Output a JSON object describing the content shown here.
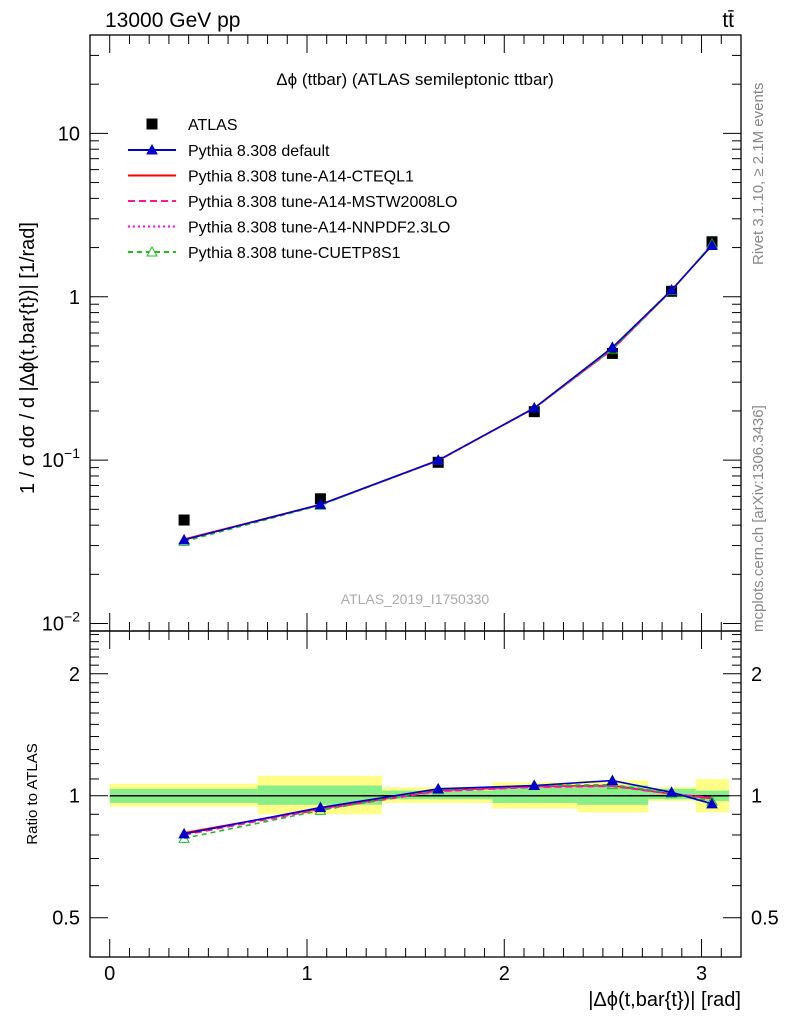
{
  "header": {
    "energy": "13000 GeV pp",
    "process": "tt̄"
  },
  "side_labels": {
    "rivet": "Rivet 3.1.10, ≥ 2.1M events",
    "source": "mcplots.cern.ch [arXiv:1306.3436]"
  },
  "chart_data": [
    {
      "type": "line",
      "panel": "main",
      "title": "Δϕ (ttbar) (ATLAS semileptonic ttbar)",
      "watermark": "ATLAS_2019_I1750330",
      "ylabel": "1 / σ dσ / d |Δϕ(t,bar{t})| [1/rad]",
      "yscale": "log",
      "xlim": [
        -0.1,
        3.2
      ],
      "ylim": [
        0.009,
        40
      ],
      "y_tick_labels": [
        {
          "value": 0.01,
          "base": "10",
          "exp": "−2"
        },
        {
          "value": 0.1,
          "base": "10",
          "exp": "−1"
        },
        {
          "value": 1,
          "base": "1",
          "exp": ""
        },
        {
          "value": 10,
          "base": "10",
          "exp": ""
        }
      ],
      "x": [
        0.377,
        1.068,
        1.665,
        2.152,
        2.548,
        2.848,
        3.053
      ],
      "data": {
        "name": "ATLAS",
        "values": [
          0.043,
          0.058,
          0.097,
          0.198,
          0.45,
          1.08,
          2.17
        ]
      },
      "legend_position": "top-left",
      "series": [
        {
          "name": "Pythia 8.308 default",
          "color": "#0000cc",
          "dash": "",
          "marker": "filled-triangle",
          "values": [
            0.0325,
            0.0535,
            0.0998,
            0.2085,
            0.49,
            1.1,
            2.06
          ]
        },
        {
          "name": "Pythia 8.308 tune-A14-CTEQL1",
          "color": "#ff0000",
          "dash": "",
          "marker": "none",
          "values": [
            0.0328,
            0.0535,
            0.0995,
            0.208,
            0.477,
            1.095,
            2.08
          ]
        },
        {
          "name": "Pythia 8.308 tune-A14-MSTW2008LO",
          "color": "#ff1493",
          "dash": "7,4",
          "marker": "none",
          "values": [
            0.0326,
            0.0532,
            0.0992,
            0.2075,
            0.474,
            1.092,
            2.09
          ]
        },
        {
          "name": "Pythia 8.308 tune-A14-NNPDF2.3LO",
          "color": "#ff00ff",
          "dash": "2,3",
          "marker": "none",
          "values": [
            0.0327,
            0.0533,
            0.0993,
            0.2078,
            0.476,
            1.094,
            2.085
          ]
        },
        {
          "name": "Pythia 8.308 tune-CUETP8S1",
          "color": "#22bb22",
          "dash": "5,4",
          "marker": "open-triangle",
          "values": [
            0.0318,
            0.053,
            0.0998,
            0.2085,
            0.478,
            1.09,
            2.1
          ]
        }
      ]
    },
    {
      "type": "line",
      "panel": "ratio",
      "ylabel": "Ratio to ATLAS",
      "xlabel": "|Δϕ(t,bar{t})| [rad]",
      "yscale": "log",
      "xlim": [
        -0.1,
        3.2
      ],
      "ylim": [
        0.4,
        2.55
      ],
      "y_ticks": [
        0.5,
        1,
        2
      ],
      "y_tick_labels": [
        "0.5",
        "1",
        "2"
      ],
      "x_ticks": [
        0,
        1,
        2,
        3
      ],
      "x_tick_labels": [
        "0",
        "1",
        "2",
        "3"
      ],
      "x": [
        0.377,
        1.068,
        1.665,
        2.152,
        2.548,
        2.848,
        3.053
      ],
      "bands": [
        {
          "xlo": 0.0,
          "xhi": 0.75,
          "inner": [
            0.96,
            1.04
          ],
          "outer": [
            0.94,
            1.07
          ]
        },
        {
          "xlo": 0.75,
          "xhi": 1.38,
          "inner": [
            0.95,
            1.06
          ],
          "outer": [
            0.9,
            1.12
          ]
        },
        {
          "xlo": 1.38,
          "xhi": 1.94,
          "inner": [
            0.98,
            1.03
          ],
          "outer": [
            0.96,
            1.05
          ]
        },
        {
          "xlo": 1.94,
          "xhi": 2.37,
          "inner": [
            0.96,
            1.05
          ],
          "outer": [
            0.93,
            1.08
          ]
        },
        {
          "xlo": 2.37,
          "xhi": 2.73,
          "inner": [
            0.95,
            1.06
          ],
          "outer": [
            0.91,
            1.09
          ]
        },
        {
          "xlo": 2.73,
          "xhi": 2.97,
          "inner": [
            0.98,
            1.04
          ],
          "outer": [
            0.97,
            1.05
          ]
        },
        {
          "xlo": 2.97,
          "xhi": 3.14,
          "inner": [
            0.97,
            1.03
          ],
          "outer": [
            0.91,
            1.1
          ]
        }
      ],
      "series": [
        {
          "name": "Pythia 8.308 default",
          "values": [
            0.805,
            0.935,
            1.04,
            1.06,
            1.09,
            1.02,
            0.955
          ]
        },
        {
          "name": "Pythia 8.308 tune-A14-CTEQL1",
          "values": [
            0.81,
            0.93,
            1.03,
            1.055,
            1.06,
            1.01,
            0.985
          ]
        },
        {
          "name": "Pythia 8.308 tune-A14-MSTW2008LO",
          "values": [
            0.8,
            0.925,
            1.025,
            1.05,
            1.055,
            1.01,
            0.99
          ]
        },
        {
          "name": "Pythia 8.308 tune-A14-NNPDF2.3LO",
          "values": [
            0.805,
            0.928,
            1.028,
            1.052,
            1.058,
            1.012,
            0.988
          ]
        },
        {
          "name": "Pythia 8.308 tune-CUETP8S1",
          "values": [
            0.785,
            0.92,
            1.035,
            1.06,
            1.065,
            1.015,
            0.97
          ]
        }
      ]
    }
  ]
}
